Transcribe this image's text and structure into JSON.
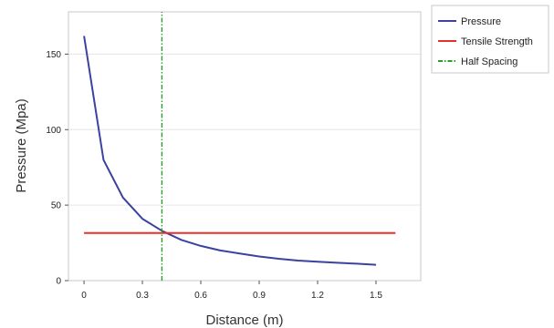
{
  "chart_data": {
    "type": "line",
    "title": "",
    "xlabel": "Distance (m)",
    "ylabel": "Pressure (Mpa)",
    "xlim": [
      -0.08,
      1.73
    ],
    "ylim": [
      0,
      178
    ],
    "x_ticks": [
      0,
      0.3,
      0.6,
      0.9,
      1.2,
      1.5
    ],
    "x_tick_labels": [
      "0",
      "0.3",
      "0.6",
      "0.9",
      "1.2",
      "1.5"
    ],
    "y_ticks": [
      0,
      50,
      100,
      150
    ],
    "y_tick_labels": [
      "0",
      "50",
      "100",
      "150"
    ],
    "grid": "horizontal",
    "legend_position": "right",
    "series": [
      {
        "name": "Pressure",
        "color": "#3b42a0",
        "style": "solid",
        "x": [
          0,
          0.1,
          0.2,
          0.3,
          0.4,
          0.5,
          0.6,
          0.7,
          0.8,
          0.9,
          1.0,
          1.1,
          1.2,
          1.3,
          1.4,
          1.5
        ],
        "y": [
          162,
          80,
          55,
          41,
          33,
          27,
          23,
          20,
          18,
          16,
          14.5,
          13.3,
          12.5,
          11.8,
          11.2,
          10.5
        ]
      },
      {
        "name": "Tensile Strength",
        "color": "#e8302a",
        "style": "solid",
        "x": [
          0,
          1.6
        ],
        "y": [
          31.5,
          31.5
        ]
      },
      {
        "name": "Half Spacing",
        "color": "#2c9e2c",
        "style": "dash-dot",
        "x": [
          0.4,
          0.4
        ],
        "y": [
          0,
          178
        ]
      }
    ]
  }
}
